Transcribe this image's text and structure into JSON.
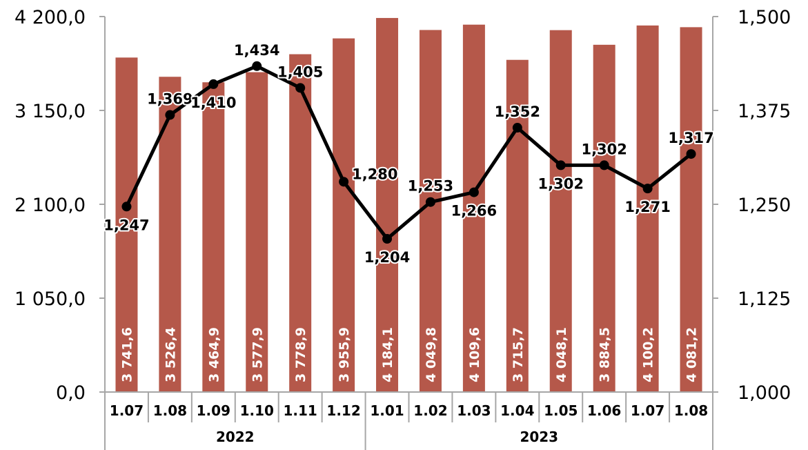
{
  "chart_data": {
    "type": "bar",
    "categories": [
      "1.07",
      "1.08",
      "1.09",
      "1.10",
      "1.11",
      "1.12",
      "1.01",
      "1.02",
      "1.03",
      "1.04",
      "1.05",
      "1.06",
      "1.07",
      "1.08"
    ],
    "year_groups": [
      {
        "label": "2022",
        "count": 6
      },
      {
        "label": "2023",
        "count": 8
      }
    ],
    "series": [
      {
        "type": "bar",
        "axis": "left",
        "color": "#b5584a",
        "values": [
          3741.6,
          3526.4,
          3464.9,
          3577.9,
          3778.9,
          3955.9,
          4184.1,
          4049.8,
          4109.6,
          3715.7,
          4048.1,
          3884.5,
          4100.2,
          4081.2
        ],
        "labels": [
          "3 741,6",
          "3 526,4",
          "3 464,9",
          "3 577,9",
          "3 778,9",
          "3 955,9",
          "4 184,1",
          "4 049,8",
          "4 109,6",
          "3 715,7",
          "4 048,1",
          "3 884,5",
          "4 100,2",
          "4 081,2"
        ]
      },
      {
        "type": "line",
        "axis": "right",
        "color": "#000000",
        "values": [
          1.247,
          1.369,
          1.41,
          1.434,
          1.405,
          1.28,
          1.204,
          1.253,
          1.266,
          1.352,
          1.302,
          1.302,
          1.271,
          1.317
        ],
        "labels": [
          "1,247",
          "1,369",
          "1,410",
          "1,434",
          "1,405",
          "1,280",
          "1,204",
          "1,253",
          "1,266",
          "1,352",
          "1,302",
          "1,302",
          "1,271",
          "1,317"
        ],
        "label_position": [
          "below",
          "above",
          "below",
          "above",
          "above",
          "right",
          "below",
          "above",
          "below",
          "above",
          "below",
          "above",
          "below",
          "above"
        ]
      }
    ],
    "y_left": {
      "min": 0,
      "max": 4200,
      "ticks": [
        0,
        1050,
        2100,
        3150,
        4200
      ],
      "tick_labels": [
        "0,0",
        "1 050,0",
        "2 100,0",
        "3 150,0",
        "4 200,0"
      ]
    },
    "y_right": {
      "min": 1.0,
      "max": 1.5,
      "ticks": [
        1.0,
        1.125,
        1.25,
        1.375,
        1.5
      ],
      "tick_labels": [
        "1,000",
        "1,125",
        "1,250",
        "1,375",
        "1,500"
      ]
    },
    "title": "",
    "xlabel": "",
    "ylabel": "",
    "grid": false,
    "legend": "none"
  }
}
